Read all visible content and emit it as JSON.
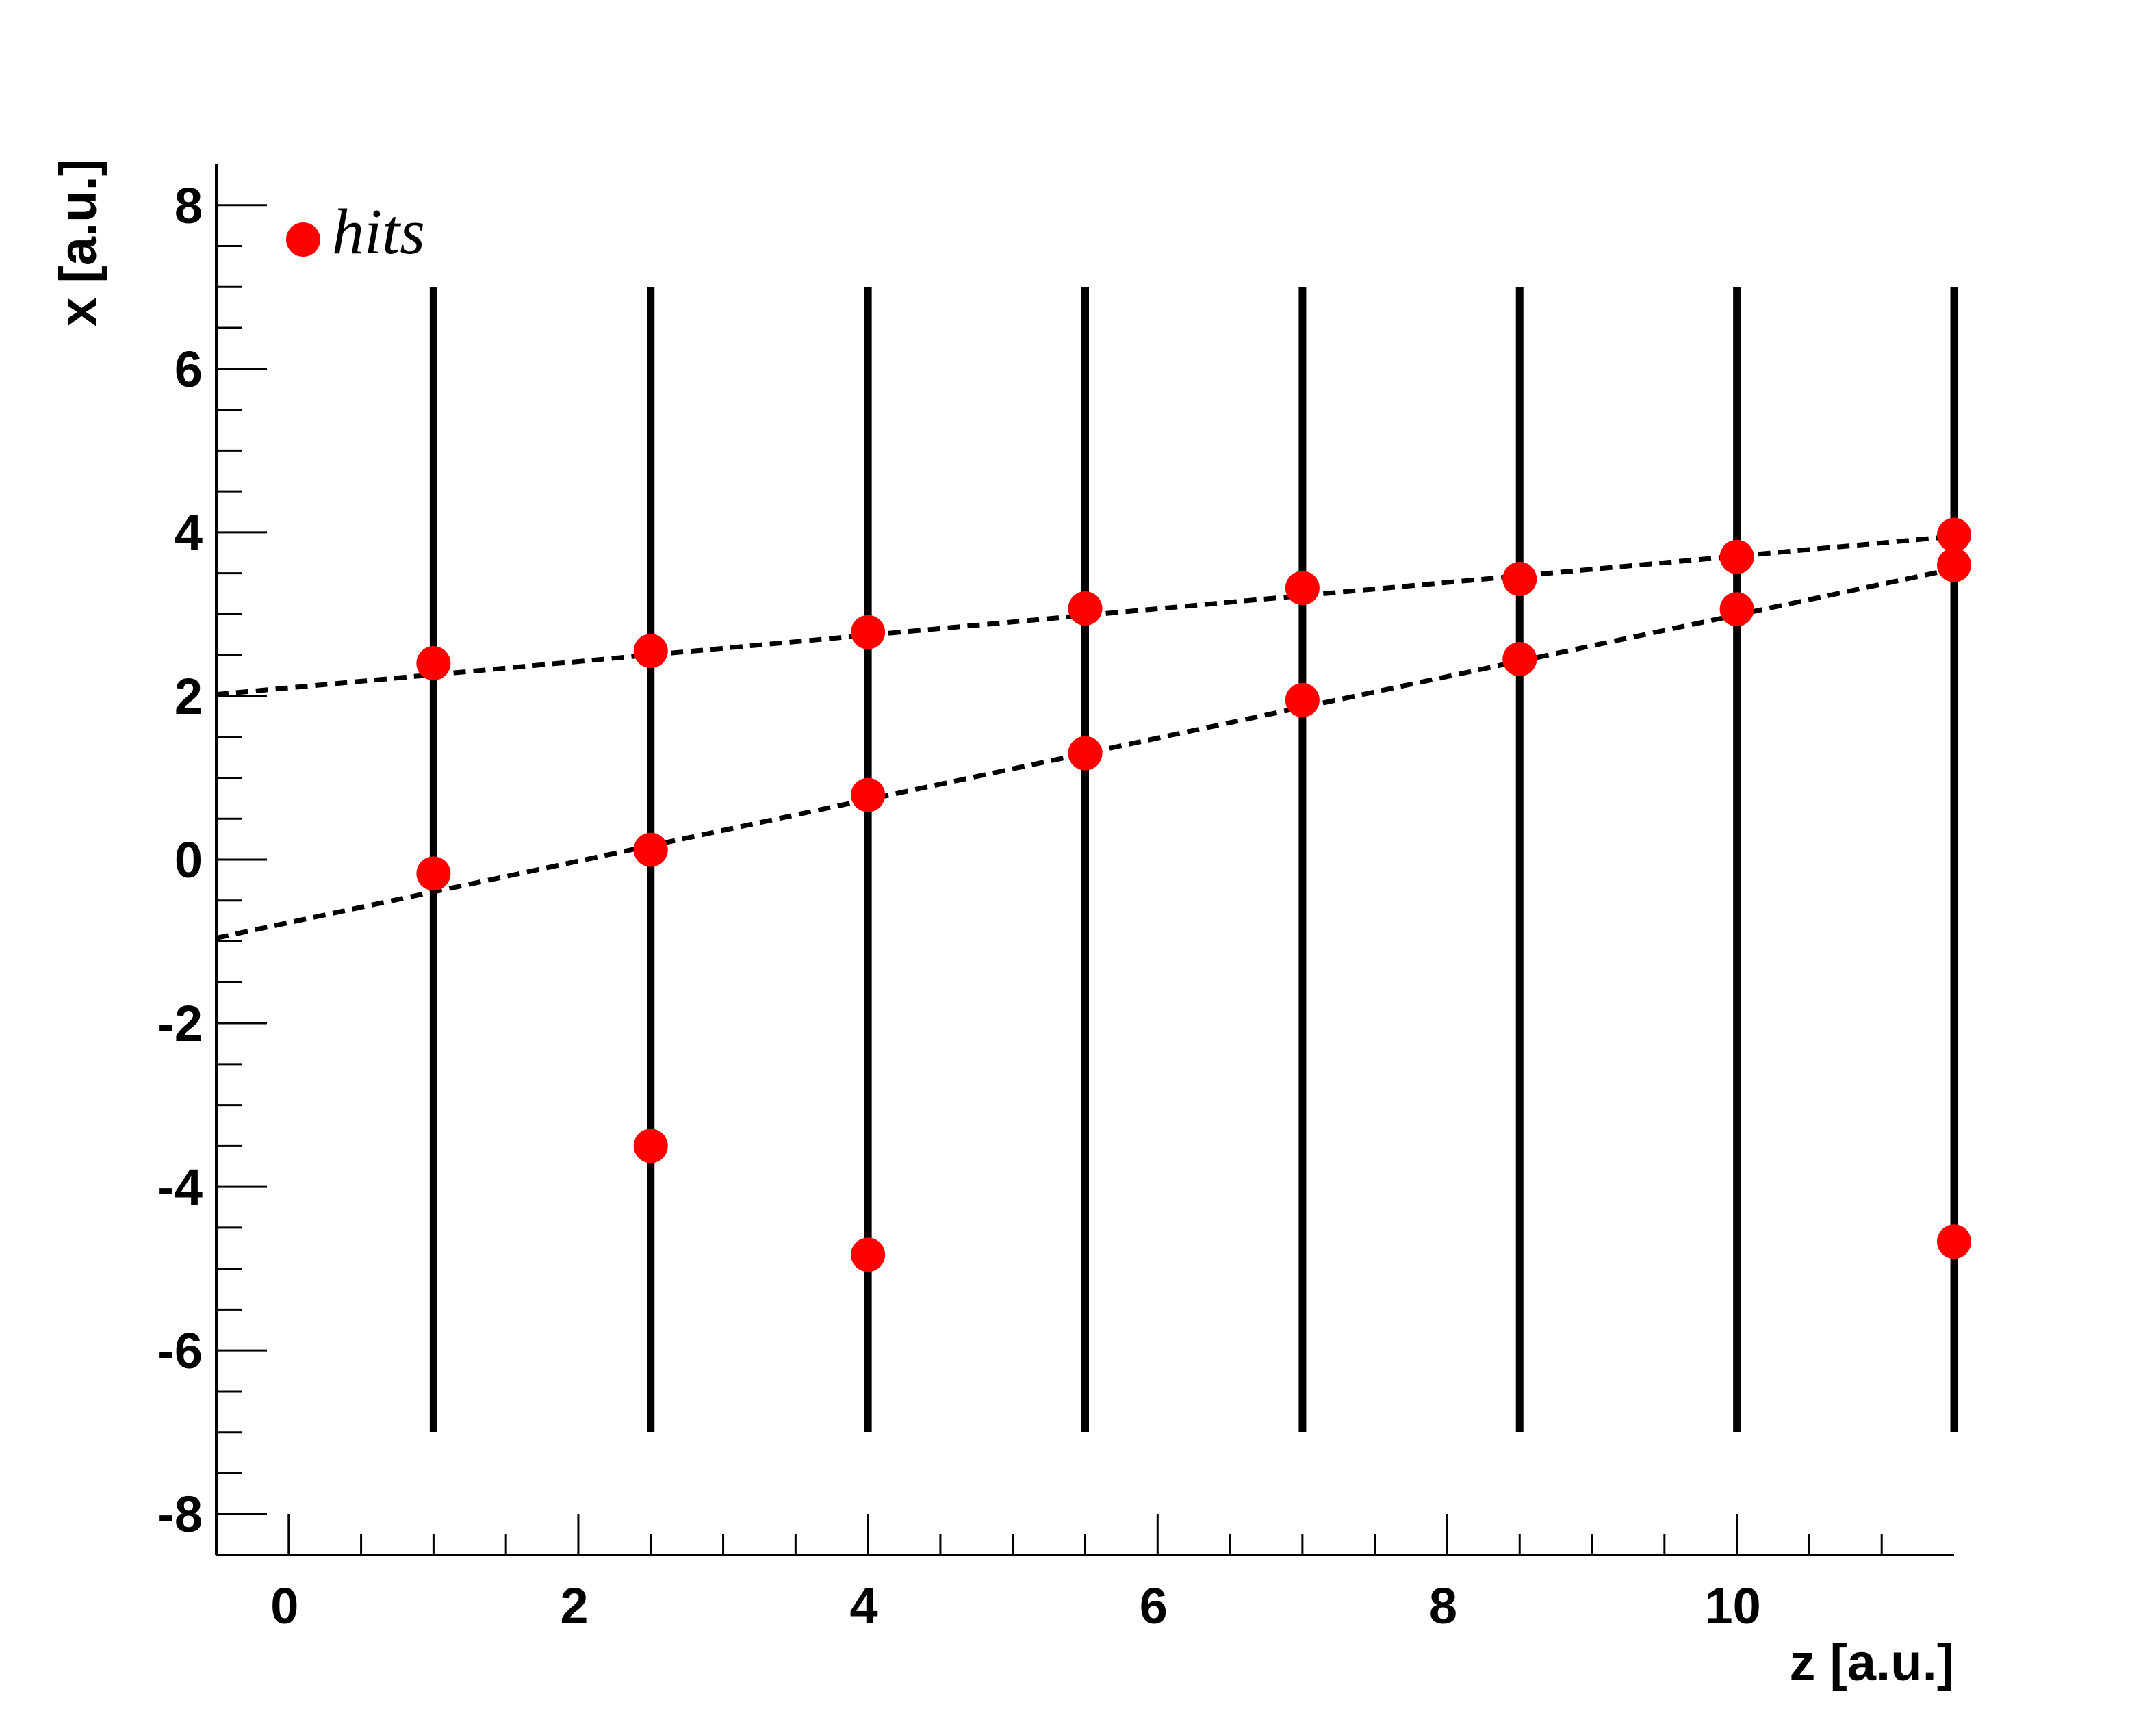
{
  "chart_data": {
    "type": "scatter",
    "title": "",
    "xlabel": "z [a.u.]",
    "ylabel": "x [a.u.]",
    "xlim": [
      -0.5,
      11.5
    ],
    "ylim": [
      -8.5,
      8.5
    ],
    "x_ticks": [
      "0",
      "2",
      "4",
      "6",
      "8",
      "10"
    ],
    "y_ticks": [
      "-8",
      "-6",
      "-4",
      "-2",
      "0",
      "2",
      "4",
      "6",
      "8"
    ],
    "legend": {
      "position": "top-left",
      "entries": [
        "hits"
      ]
    },
    "grid": false,
    "colors": {
      "hits": "#ff0000",
      "detector_planes": "#000000",
      "tracks": "#000000"
    },
    "detector_planes": {
      "z": [
        1,
        2.5,
        4,
        5.5,
        7,
        8.5,
        10,
        11.5
      ],
      "x_range": [
        -7,
        7
      ]
    },
    "series": [
      {
        "name": "hits",
        "points": [
          [
            1,
            2.4
          ],
          [
            2.5,
            2.55
          ],
          [
            4,
            2.78
          ],
          [
            5.5,
            3.07
          ],
          [
            7,
            3.32
          ],
          [
            8.5,
            3.43
          ],
          [
            10,
            3.7
          ],
          [
            11.5,
            3.97
          ],
          [
            1,
            -0.17
          ],
          [
            2.5,
            0.12
          ],
          [
            4,
            0.79
          ],
          [
            5.5,
            1.3
          ],
          [
            7,
            1.95
          ],
          [
            8.5,
            2.45
          ],
          [
            10,
            3.06
          ],
          [
            11.5,
            3.6
          ],
          [
            2.5,
            -3.5
          ],
          [
            4,
            -4.83
          ],
          [
            11.5,
            -4.67
          ]
        ]
      }
    ],
    "tracks": [
      {
        "x0": 2.1,
        "slope": 0.161
      },
      {
        "x0": -0.77,
        "slope": 0.376
      }
    ]
  }
}
